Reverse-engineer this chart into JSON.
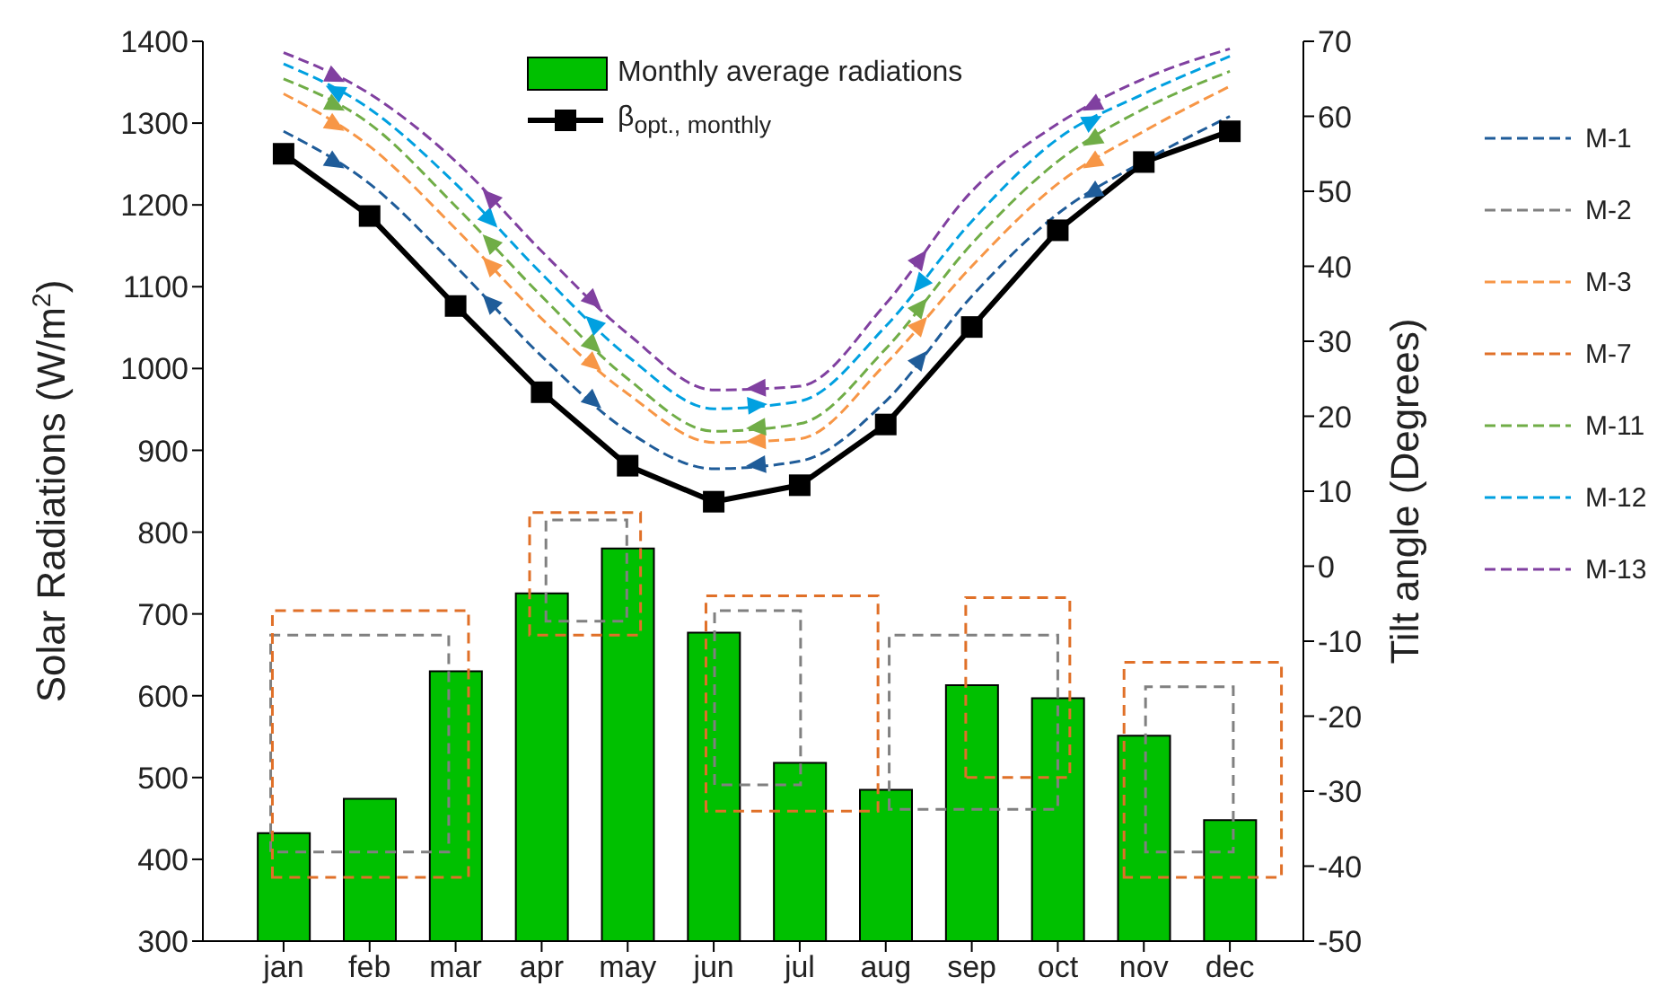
{
  "chart_data": {
    "type": "bar",
    "xlabel": null,
    "ylabel": "Solar Radiations (W/m$^{2}$)",
    "y2label": "Tilt angle (Degrees)",
    "categories": [
      "jan",
      "feb",
      "mar",
      "apr",
      "may",
      "jun",
      "jul",
      "aug",
      "sep",
      "oct",
      "nov",
      "dec"
    ],
    "ylim": [
      300,
      1400
    ],
    "yticks": [
      300,
      400,
      500,
      600,
      700,
      800,
      900,
      1000,
      1100,
      1200,
      1300,
      1400
    ],
    "y2lim": [
      -50,
      70
    ],
    "y2ticks": [
      -50,
      -40,
      -30,
      -20,
      -10,
      0,
      10,
      20,
      30,
      40,
      50,
      60,
      70
    ],
    "grid": false,
    "legend": "right",
    "series": [
      {
        "name": "Monthly average radiations",
        "color": "#00c000",
        "values": [
          432,
          474,
          630,
          725,
          780,
          677,
          518,
          485,
          613,
          597,
          551,
          448
        ]
      },
      {
        "name": "β$_{opt., monthly}$",
        "type": "line",
        "axis": "y2",
        "color": "#000000",
        "marker": "square",
        "line_style": "solid",
        "values": [
          55,
          46.7,
          34.7,
          23.2,
          13.4,
          8.6,
          10.8,
          18.9,
          31.9,
          44.8,
          53.9,
          58
        ]
      },
      {
        "name": "M-1",
        "type": "line",
        "axis": "y2",
        "color": "#1f5c99",
        "marker": "none",
        "line_style": "dashed",
        "values": [
          58,
          51,
          40,
          28,
          18,
          13,
          14,
          22,
          36,
          47,
          54,
          60
        ]
      },
      {
        "name": "M-2",
        "type": "line",
        "axis": "y2",
        "color": "#808080",
        "marker": "none",
        "line_style": "dashed",
        "values": [
          null,
          null,
          null,
          null,
          null,
          null,
          null,
          null,
          null,
          null,
          null,
          null
        ]
      },
      {
        "name": "M-3",
        "type": "line",
        "axis": "y2",
        "color": "#f79646",
        "marker": "none",
        "line_style": "dashed",
        "values": [
          63,
          56,
          45,
          33,
          23,
          16.5,
          17,
          27,
          40,
          51,
          58,
          64
        ]
      },
      {
        "name": "M-7",
        "type": "line",
        "axis": "y2",
        "color": "#e07028",
        "marker": "none",
        "line_style": "dashed",
        "values": [
          null,
          null,
          null,
          null,
          null,
          null,
          null,
          null,
          null,
          null,
          null,
          null
        ]
      },
      {
        "name": "M-11",
        "type": "line",
        "axis": "y2",
        "color": "#70ad47",
        "marker": "none",
        "line_style": "dashed",
        "values": [
          65,
          59,
          48,
          36,
          25,
          18,
          19,
          29,
          43,
          54,
          61,
          66
        ]
      },
      {
        "name": "M-12",
        "type": "line",
        "axis": "y2",
        "color": "#00a0e0",
        "marker": "none",
        "line_style": "dashed",
        "values": [
          67,
          61,
          51,
          39,
          28,
          21,
          22,
          32,
          46,
          57,
          63,
          68
        ]
      },
      {
        "name": "M-13",
        "type": "line",
        "axis": "y2",
        "color": "#8040a0",
        "marker": "none",
        "line_style": "dashed",
        "values": [
          68.5,
          63,
          54,
          42,
          31,
          23.5,
          24,
          35,
          50,
          59,
          65,
          69
        ]
      }
    ]
  }
}
